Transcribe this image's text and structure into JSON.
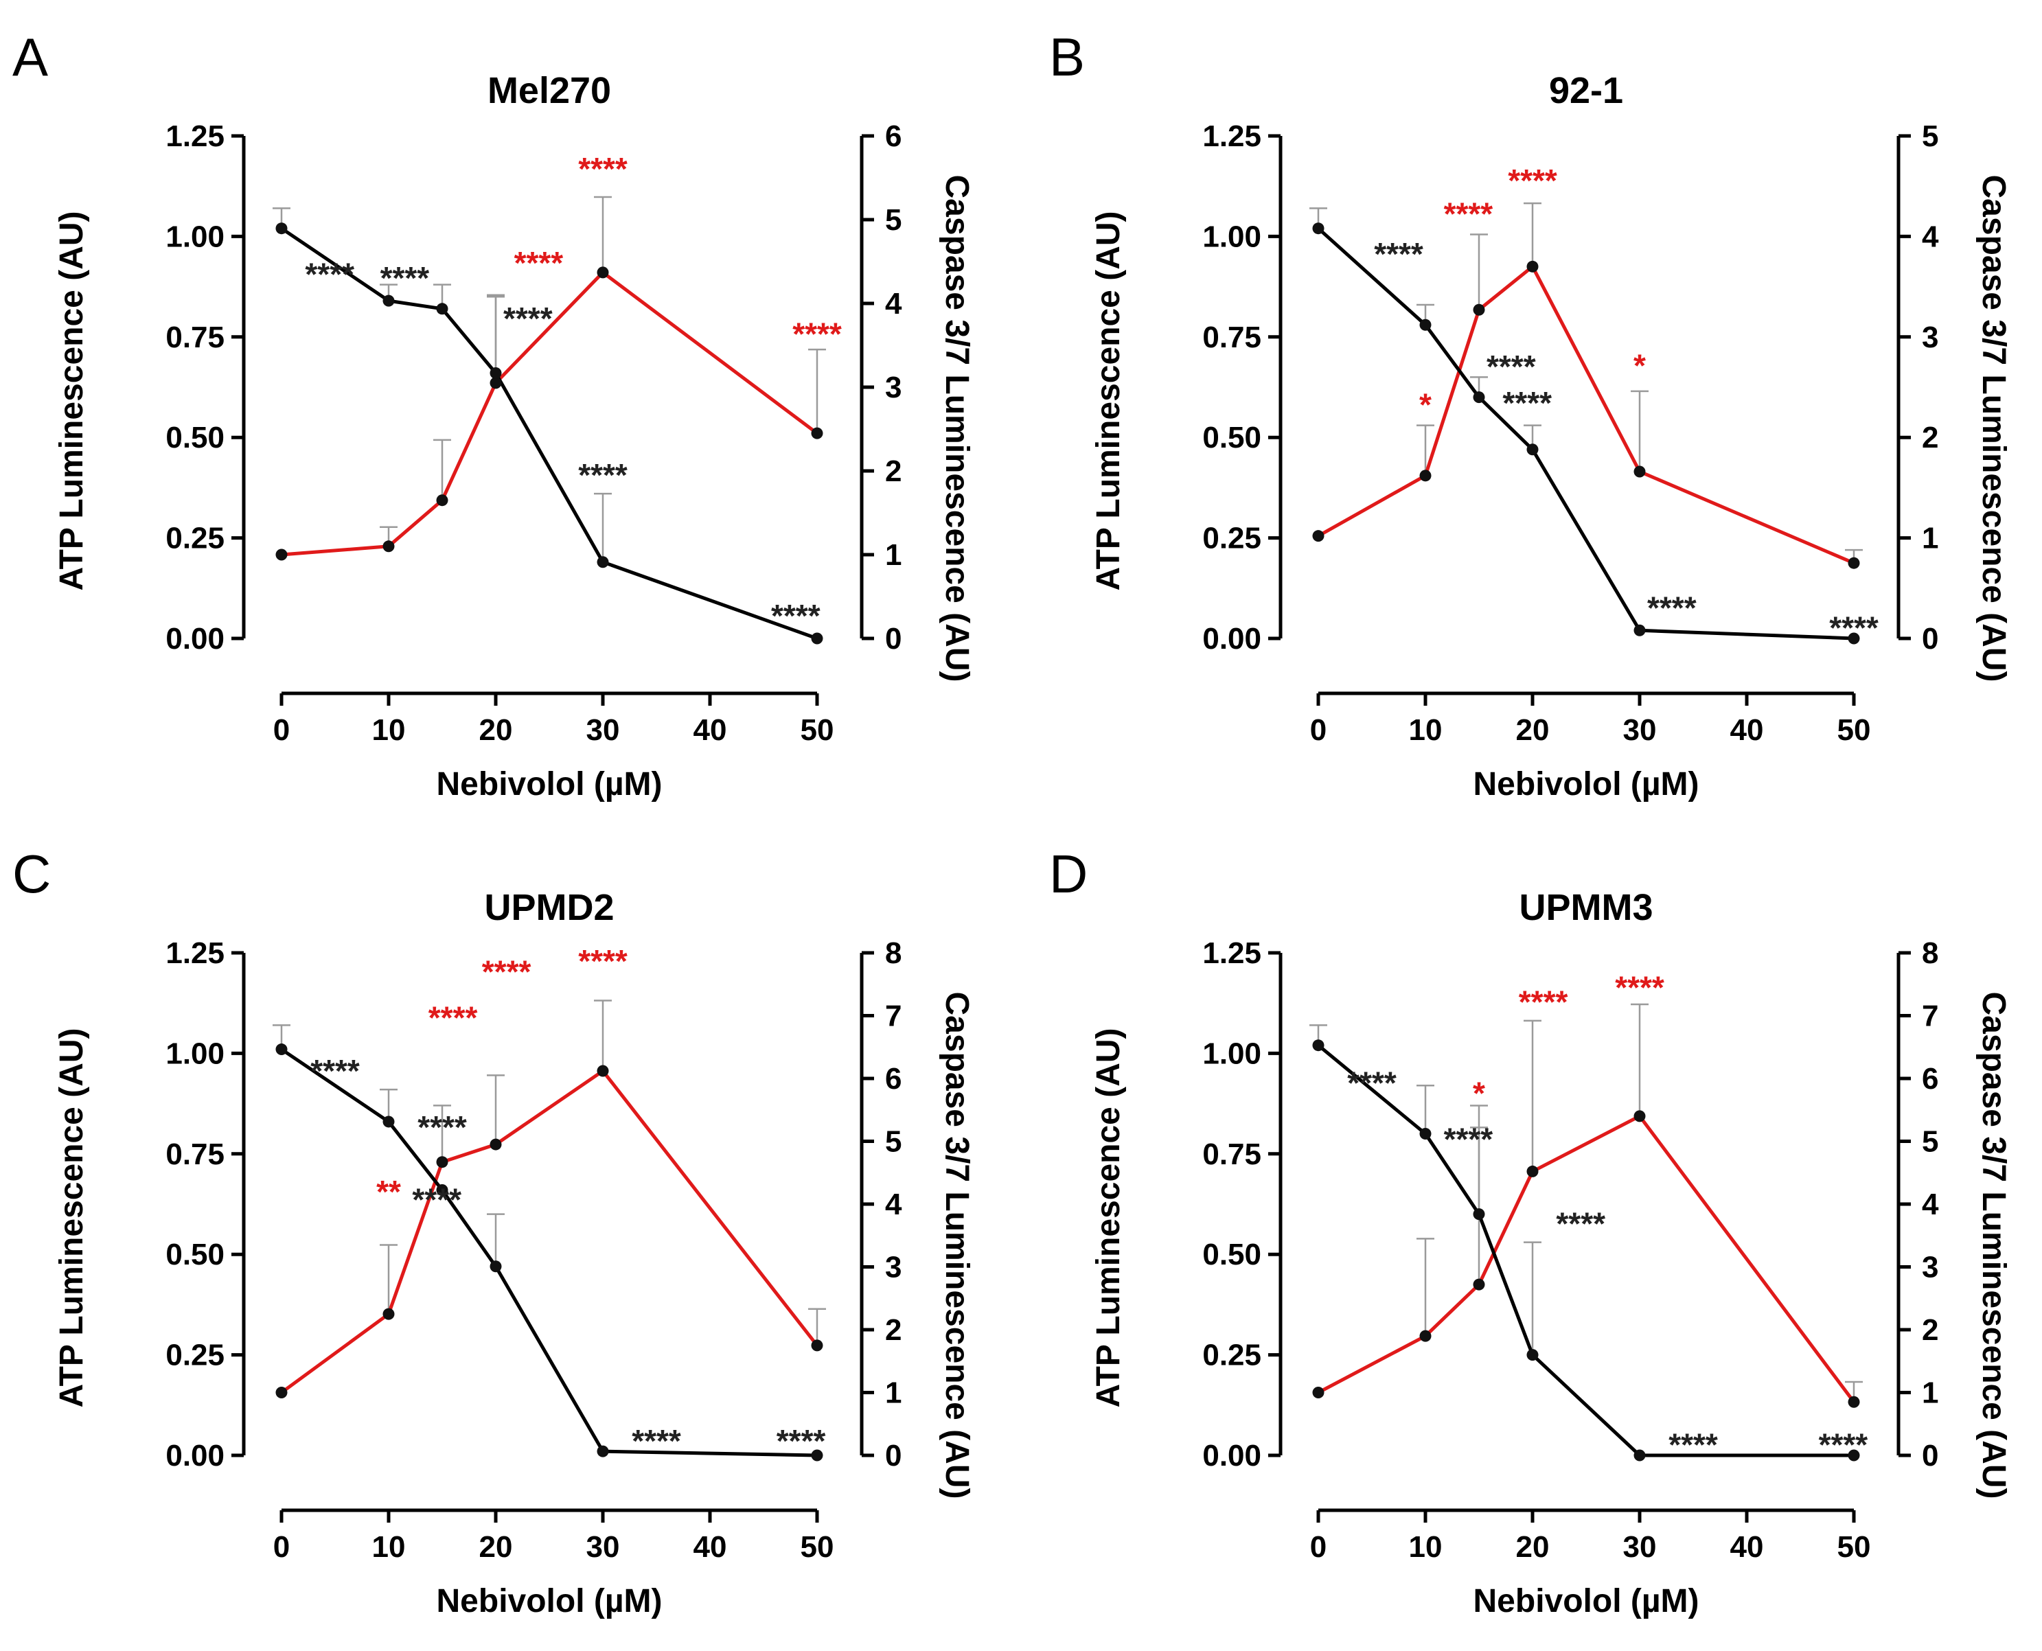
{
  "chart_data": [
    {
      "panel": "A",
      "title": "Mel270",
      "type": "line",
      "xlabel": "Nebivolol (µM)",
      "ylabel_left": "ATP Luminescence (AU)",
      "ylabel_right": "Caspase 3/7 Luminescence (AU)",
      "xlim": [
        0,
        50
      ],
      "x_ticks": [
        "0",
        "10",
        "20",
        "30",
        "40",
        "50"
      ],
      "ylim_left": [
        0,
        1.25
      ],
      "y_ticks_left": [
        "0.00",
        "0.25",
        "0.50",
        "0.75",
        "1.00",
        "1.25"
      ],
      "ylim_right": [
        0,
        6
      ],
      "y_ticks_right": [
        "0",
        "1",
        "2",
        "3",
        "4",
        "5",
        "6"
      ],
      "x": [
        0,
        10,
        15,
        20,
        30,
        50
      ],
      "series": [
        {
          "name": "ATP",
          "axis": "left",
          "color": "#000000",
          "values": [
            1.02,
            0.84,
            0.82,
            0.66,
            0.19,
            0.0
          ],
          "error": [
            0.05,
            0.04,
            0.06,
            0.19,
            0.17,
            null
          ],
          "annotations": [
            null,
            {
              "text": "****",
              "dx": -0.55,
              "dy": 0.09
            },
            {
              "text": "****",
              "dx": -0.35,
              "dy": 0.1
            },
            {
              "text": "****",
              "dx": 0.3,
              "dy": 0.16
            },
            {
              "text": "****",
              "dx": 0.0,
              "dy": 0.24
            },
            {
              "text": "****",
              "dx": -0.2,
              "dy": 0.08
            }
          ]
        },
        {
          "name": "Caspase 3/7",
          "axis": "right",
          "color": "#e01a1a",
          "values": [
            1.0,
            1.1,
            1.65,
            3.05,
            4.37,
            2.45
          ],
          "error": [
            null,
            0.23,
            0.72,
            1.05,
            0.9,
            1.0
          ],
          "annotations": [
            null,
            null,
            null,
            {
              "text": "****",
              "dx": 0.4,
              "dy": 1.55
            },
            {
              "text": "****",
              "dx": 0.0,
              "dy": 1.35
            },
            {
              "text": "****",
              "dx": 0.0,
              "dy": 1.3
            }
          ]
        }
      ]
    },
    {
      "panel": "B",
      "title": "92-1",
      "type": "line",
      "xlabel": "Nebivolol (µM)",
      "ylabel_left": "ATP Luminescence (AU)",
      "ylabel_right": "Caspase 3/7 Luminescence (AU)",
      "xlim": [
        0,
        50
      ],
      "x_ticks": [
        "0",
        "10",
        "20",
        "30",
        "40",
        "50"
      ],
      "ylim_left": [
        0,
        1.25
      ],
      "y_ticks_left": [
        "0.00",
        "0.25",
        "0.50",
        "0.75",
        "1.00",
        "1.25"
      ],
      "ylim_right": [
        0,
        5
      ],
      "y_ticks_right": [
        "0",
        "1",
        "2",
        "3",
        "4",
        "5"
      ],
      "x": [
        0,
        10,
        15,
        20,
        30,
        50
      ],
      "series": [
        {
          "name": "ATP",
          "axis": "left",
          "color": "#000000",
          "values": [
            1.02,
            0.78,
            0.6,
            0.47,
            0.02,
            0.0
          ],
          "error": [
            0.05,
            0.05,
            0.05,
            0.06,
            0.0,
            null
          ],
          "annotations": [
            null,
            {
              "text": "****",
              "dx": -0.25,
              "dy": 0.2
            },
            {
              "text": "****",
              "dx": 0.3,
              "dy": 0.1
            },
            {
              "text": "****",
              "dx": -0.05,
              "dy": 0.14
            },
            {
              "text": "****",
              "dx": 0.3,
              "dy": 0.08
            },
            {
              "text": "****",
              "dx": 0.0,
              "dy": 0.05
            }
          ]
        },
        {
          "name": "Caspase 3/7",
          "axis": "right",
          "color": "#e01a1a",
          "values": [
            1.02,
            1.62,
            3.27,
            3.7,
            1.66,
            0.75
          ],
          "error": [
            null,
            0.5,
            0.75,
            0.63,
            0.8,
            0.13
          ],
          "annotations": [
            null,
            {
              "text": "*",
              "dx": 0.0,
              "dy": 0.8
            },
            {
              "text": "****",
              "dx": -0.1,
              "dy": 1.05
            },
            {
              "text": "****",
              "dx": 0.0,
              "dy": 0.95
            },
            {
              "text": "*",
              "dx": 0.0,
              "dy": 1.15
            },
            null
          ]
        }
      ]
    },
    {
      "panel": "C",
      "title": "UPMD2",
      "type": "line",
      "xlabel": "Nebivolol (µM)",
      "ylabel_left": "ATP Luminescence (AU)",
      "ylabel_right": "Caspase 3/7 Luminescence (AU)",
      "xlim": [
        0,
        50
      ],
      "x_ticks": [
        "0",
        "10",
        "20",
        "30",
        "40",
        "50"
      ],
      "ylim_left": [
        0,
        1.25
      ],
      "y_ticks_left": [
        "0.00",
        "0.25",
        "0.50",
        "0.75",
        "1.00",
        "1.25"
      ],
      "ylim_right": [
        0,
        8
      ],
      "y_ticks_right": [
        "0",
        "1",
        "2",
        "3",
        "4",
        "5",
        "6",
        "7",
        "8"
      ],
      "x": [
        0,
        10,
        15,
        20,
        30,
        50
      ],
      "series": [
        {
          "name": "ATP",
          "axis": "left",
          "color": "#000000",
          "values": [
            1.01,
            0.83,
            0.66,
            0.47,
            0.01,
            0.0
          ],
          "error": [
            0.06,
            0.08,
            null,
            0.13,
            null,
            null
          ],
          "annotations": [
            null,
            {
              "text": "****",
              "dx": -0.5,
              "dy": 0.15
            },
            {
              "text": "****",
              "dx": 0.0,
              "dy": 0.18
            },
            {
              "text": "****",
              "dx": -0.55,
              "dy": 0.19
            },
            {
              "text": "****",
              "dx": 0.5,
              "dy": 0.05
            },
            {
              "text": "****",
              "dx": -0.15,
              "dy": 0.06
            }
          ]
        },
        {
          "name": "Caspase 3/7",
          "axis": "right",
          "color": "#e01a1a",
          "values": [
            1.0,
            2.25,
            4.67,
            4.95,
            6.12,
            1.75
          ],
          "error": [
            null,
            1.1,
            0.9,
            1.1,
            1.12,
            0.58
          ],
          "annotations": [
            null,
            {
              "text": "**",
              "dx": 0.0,
              "dy": 2.1
            },
            {
              "text": "****",
              "dx": 0.1,
              "dy": 2.45
            },
            {
              "text": "****",
              "dx": 0.1,
              "dy": 2.9
            },
            {
              "text": "****",
              "dx": 0.0,
              "dy": 1.9
            },
            null
          ]
        }
      ]
    },
    {
      "panel": "D",
      "title": "UPMM3",
      "type": "line",
      "xlabel": "Nebivolol (µM)",
      "ylabel_left": "ATP Luminescence (AU)",
      "ylabel_right": "Caspase 3/7 Luminescence (AU)",
      "xlim": [
        0,
        50
      ],
      "x_ticks": [
        "0",
        "10",
        "20",
        "30",
        "40",
        "50"
      ],
      "ylim_left": [
        0,
        1.25
      ],
      "y_ticks_left": [
        "0.00",
        "0.25",
        "0.50",
        "0.75",
        "1.00",
        "1.25"
      ],
      "ylim_right": [
        0,
        8
      ],
      "y_ticks_right": [
        "0",
        "1",
        "2",
        "3",
        "4",
        "5",
        "6",
        "7",
        "8"
      ],
      "x": [
        0,
        10,
        15,
        20,
        30,
        50
      ],
      "series": [
        {
          "name": "ATP",
          "axis": "left",
          "color": "#000000",
          "values": [
            1.02,
            0.8,
            0.6,
            0.25,
            0.0,
            0.0
          ],
          "error": [
            0.05,
            0.12,
            0.27,
            0.28,
            null,
            null
          ],
          "annotations": [
            null,
            {
              "text": "****",
              "dx": -0.5,
              "dy": 0.15
            },
            {
              "text": "****",
              "dx": -0.1,
              "dy": 0.21
            },
            {
              "text": "****",
              "dx": 0.45,
              "dy": 0.35
            },
            {
              "text": "****",
              "dx": 0.5,
              "dy": 0.05
            },
            {
              "text": "****",
              "dx": -0.1,
              "dy": 0.05
            }
          ]
        },
        {
          "name": "Caspase 3/7",
          "axis": "right",
          "color": "#e01a1a",
          "values": [
            1.0,
            1.9,
            2.72,
            4.52,
            5.4,
            0.85
          ],
          "error": [
            null,
            1.55,
            2.5,
            2.4,
            1.78,
            0.32
          ],
          "annotations": [
            null,
            null,
            {
              "text": "*",
              "dx": 0.0,
              "dy": 3.2
            },
            {
              "text": "****",
              "dx": 0.1,
              "dy": 2.85
            },
            {
              "text": "****",
              "dx": 0.0,
              "dy": 2.2
            },
            null
          ]
        }
      ]
    }
  ]
}
